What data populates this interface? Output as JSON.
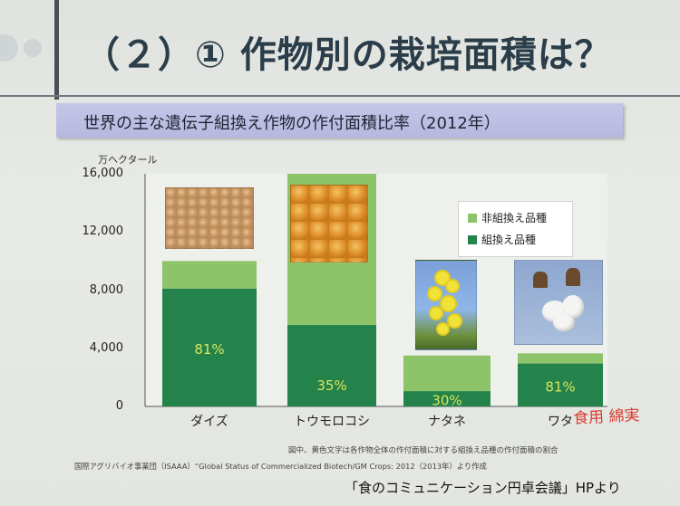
{
  "slide": {
    "title": "（２）① 作物別の栽培面積は？",
    "subtitle": "世界の主な遺伝子組換え作物の作付面積比率（2012年）",
    "unit": "万ヘクタール",
    "note": "図中、黄色文字は各作物全体の作付面積に対する組換え品種の作付面積の割合",
    "source": "国際アグリバイオ事業団（ISAAA）“Global Status of Commercialized Biotech/GM Crops: 2012（2013年）より作成",
    "source2": "「食のコミュニケーション円卓会議」HPより",
    "handwriting": "食用 綿実"
  },
  "colors": {
    "gm": "#24834a",
    "non_gm": "#8dc46a",
    "label": "#d9e65e"
  },
  "chart_data": {
    "type": "bar",
    "stacked": true,
    "categories": [
      "ダイズ",
      "トウモロコシ",
      "ナタネ",
      "ワタ"
    ],
    "series": [
      {
        "name": "組換え品種",
        "values": [
          8100,
          5600,
          1050,
          2950
        ]
      },
      {
        "name": "非組換え品種",
        "values": [
          1900,
          10400,
          2450,
          700
        ]
      }
    ],
    "percent_labels": [
      "81%",
      "35%",
      "30%",
      "81%"
    ],
    "ylim": [
      0,
      16000
    ],
    "yticks": [
      "0",
      "4,000",
      "8,000",
      "12,000",
      "16,000"
    ],
    "ylabel": "万ヘクタール",
    "legend_position": "top-right",
    "grid": false
  },
  "images": [
    {
      "icon": "soybeans-photo"
    },
    {
      "icon": "corn-kernels-photo"
    },
    {
      "icon": "canola-flower-photo"
    },
    {
      "icon": "cotton-boll-photo"
    }
  ]
}
